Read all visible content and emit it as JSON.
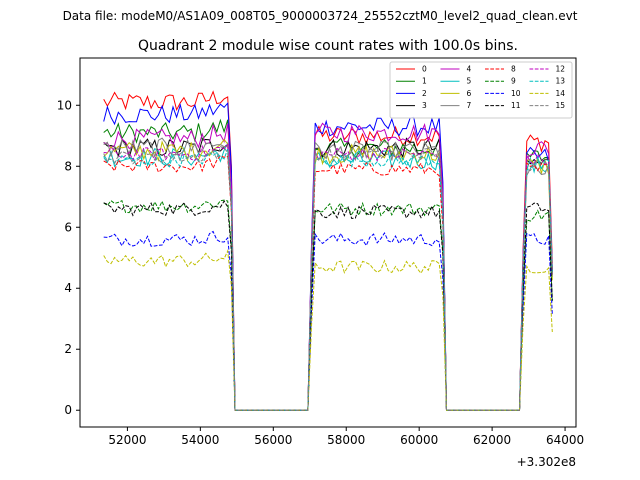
{
  "figure": {
    "suptitle": "Data file: modeM0/AS1A09_008T05_9000003724_25552cztM0_level2_quad_clean.evt"
  },
  "chart_data": {
    "type": "line",
    "title": "Quadrant 2 module wise count rates with 100.0s bins.",
    "xlabel": "",
    "ylabel": "",
    "x_offset_label": "+3.302e8",
    "xlim": [
      50700,
      64300
    ],
    "ylim": [
      -0.55,
      11.55
    ],
    "xticks": [
      52000,
      54000,
      56000,
      58000,
      60000,
      62000,
      64000
    ],
    "xtick_labels": [
      "52000",
      "54000",
      "56000",
      "58000",
      "60000",
      "62000",
      "64000"
    ],
    "yticks": [
      0,
      2,
      4,
      6,
      8,
      10
    ],
    "ytick_labels": [
      "0",
      "2",
      "4",
      "6",
      "8",
      "10"
    ],
    "grid": false,
    "legend_position": "top-right",
    "legend_columns": 4,
    "time_segments": [
      {
        "start": 51350,
        "end": 54750
      },
      {
        "start": 57150,
        "end": 60550
      },
      {
        "start": 62950,
        "end": 63550
      }
    ],
    "gap_level": 0,
    "series": [
      {
        "name": "0",
        "color": "#ff0000",
        "dashed": false,
        "levels": [
          10.1,
          9.0,
          8.8
        ]
      },
      {
        "name": "1",
        "color": "#008000",
        "dashed": false,
        "levels": [
          9.1,
          8.6,
          8.3
        ]
      },
      {
        "name": "2",
        "color": "#0000ff",
        "dashed": false,
        "levels": [
          9.7,
          9.3,
          8.3
        ]
      },
      {
        "name": "3",
        "color": "#000000",
        "dashed": false,
        "levels": [
          8.6,
          8.6,
          8.1
        ]
      },
      {
        "name": "4",
        "color": "#bf00bf",
        "dashed": false,
        "levels": [
          8.9,
          9.1,
          8.6
        ]
      },
      {
        "name": "5",
        "color": "#00bfbf",
        "dashed": false,
        "levels": [
          8.3,
          8.2,
          8.0
        ]
      },
      {
        "name": "6",
        "color": "#bfbf00",
        "dashed": false,
        "levels": [
          8.5,
          8.4,
          8.0
        ]
      },
      {
        "name": "7",
        "color": "#808080",
        "dashed": false,
        "levels": [
          8.6,
          8.5,
          7.8
        ]
      },
      {
        "name": "8",
        "color": "#ff0000",
        "dashed": true,
        "levels": [
          8.0,
          7.9,
          7.9
        ]
      },
      {
        "name": "9",
        "color": "#008000",
        "dashed": true,
        "levels": [
          6.7,
          6.6,
          6.4
        ]
      },
      {
        "name": "10",
        "color": "#0000ff",
        "dashed": true,
        "levels": [
          5.6,
          5.6,
          5.6
        ]
      },
      {
        "name": "11",
        "color": "#000000",
        "dashed": true,
        "levels": [
          6.6,
          6.5,
          6.6
        ]
      },
      {
        "name": "12",
        "color": "#bf00bf",
        "dashed": true,
        "levels": [
          8.4,
          8.4,
          8.2
        ]
      },
      {
        "name": "13",
        "color": "#00bfbf",
        "dashed": true,
        "levels": [
          8.2,
          8.2,
          8.0
        ]
      },
      {
        "name": "14",
        "color": "#bfbf00",
        "dashed": true,
        "levels": [
          4.9,
          4.7,
          4.7
        ]
      },
      {
        "name": "15",
        "color": "#808080",
        "dashed": true,
        "levels": [
          8.3,
          8.4,
          8.0
        ]
      }
    ]
  }
}
